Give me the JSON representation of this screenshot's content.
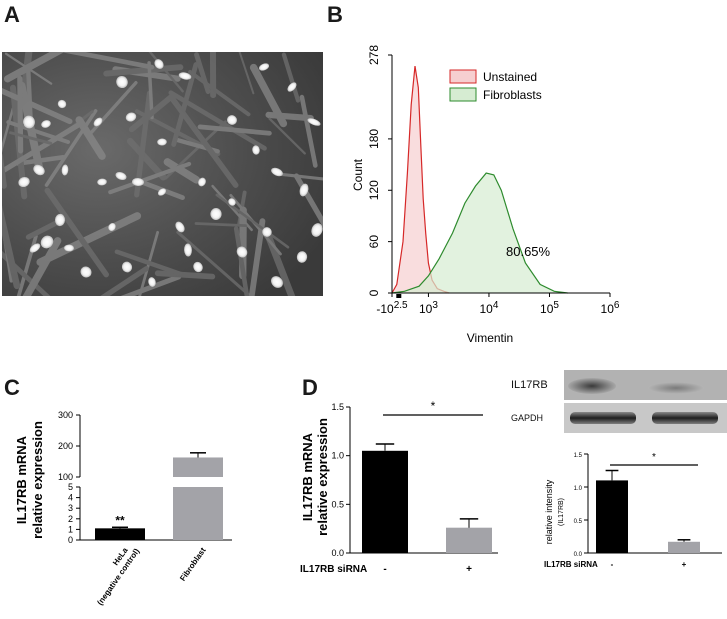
{
  "panels": {
    "a": {
      "letter": "A"
    },
    "b": {
      "letter": "B"
    },
    "c": {
      "letter": "C"
    },
    "d": {
      "letter": "D"
    }
  },
  "blot": {
    "band_top_label": "IL17RB",
    "band_bottom_label": "GAPDH"
  },
  "colors": {
    "unstained": "#d62828",
    "unstained_fill": "#f6cfd0",
    "fibroblasts": "#2e8b2e",
    "fibroblasts_fill": "#d6ecd2",
    "bar_black": "#000000",
    "bar_gray": "#a3a3a8"
  },
  "chart_data": [
    {
      "id": "B",
      "type": "area",
      "xlabel": "Vimentin",
      "ylabel": "Count",
      "x_scale": "log (biexponential)",
      "x_tick_labels": [
        "-10^2.5",
        "10^3",
        "10^4",
        "10^5",
        "10^6"
      ],
      "y_ticks": [
        0,
        60,
        120,
        180,
        278
      ],
      "ylim": [
        0,
        278
      ],
      "legend": [
        "Unstained",
        "Fibroblasts"
      ],
      "legend_position": "top-right",
      "annotation": "80.65%",
      "series": [
        {
          "name": "Unstained",
          "x": [
            250,
            300,
            380,
            450,
            520,
            600,
            680,
            750,
            820,
            900,
            1000,
            1150,
            1400,
            1800,
            2200
          ],
          "y": [
            0,
            10,
            60,
            140,
            220,
            265,
            240,
            170,
            110,
            70,
            35,
            15,
            5,
            2,
            0
          ]
        },
        {
          "name": "Fibroblasts",
          "x": [
            250,
            400,
            700,
            1000,
            1500,
            2500,
            4000,
            6000,
            9000,
            12000,
            16000,
            25000,
            40000,
            70000,
            120000,
            200000
          ],
          "y": [
            0,
            2,
            8,
            20,
            40,
            70,
            105,
            125,
            140,
            138,
            120,
            75,
            35,
            10,
            2,
            0
          ]
        }
      ]
    },
    {
      "id": "C",
      "type": "bar",
      "ylabel": "IL17RB mRNA relative expression",
      "categories": [
        "HeLa (negative control)",
        "Fibroblast"
      ],
      "values": [
        1.1,
        163
      ],
      "errors": [
        0.1,
        15
      ],
      "y_tick_labels": [
        "0",
        "1",
        "2",
        "3",
        "4",
        "5",
        "100",
        "200",
        "300"
      ],
      "y_axis_break": [
        5,
        100
      ],
      "significance": [
        "**",
        ""
      ]
    },
    {
      "id": "D-left",
      "type": "bar",
      "ylabel": "IL17RB mRNA relative expression",
      "xlabel": "IL17RB siRNA",
      "categories": [
        "-",
        "+"
      ],
      "values": [
        1.05,
        0.26
      ],
      "errors": [
        0.07,
        0.09
      ],
      "y_tick_labels": [
        "0.0",
        "0.5",
        "1.0",
        "1.5"
      ],
      "ylim": [
        0,
        1.5
      ],
      "significance": "*"
    },
    {
      "id": "D-right",
      "type": "bar",
      "ylabel": "relative intensity",
      "ylabel_sub": "(IL17RB)",
      "xlabel": "IL17RB siRNA",
      "categories": [
        "-",
        "+"
      ],
      "values": [
        1.1,
        0.17
      ],
      "errors": [
        0.15,
        0.03
      ],
      "y_tick_labels": [
        "0.0",
        "0.5",
        "1.0",
        "1.5"
      ],
      "ylim": [
        0,
        1.5
      ],
      "significance": "*"
    }
  ]
}
